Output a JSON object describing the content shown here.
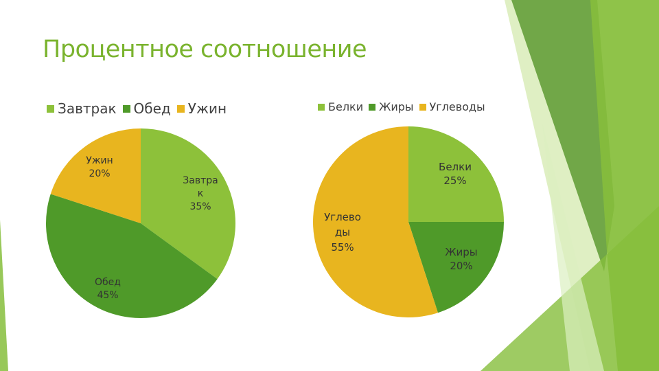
{
  "title": "Процентное соотношение",
  "colors": {
    "title": "#7ab32e",
    "light_green": "#8dc13a",
    "green": "#4f9a29",
    "gold": "#e8b51f",
    "deco_dark": "#5e9a33",
    "deco_mid": "#86be3c",
    "deco_light": "#b8dc7a"
  },
  "chart_data": [
    {
      "type": "pie",
      "title": "",
      "legend": "top",
      "categories": [
        "Завтрак",
        "Обед",
        "Ужин"
      ],
      "values": [
        35,
        45,
        20
      ],
      "unit": "%",
      "data_labels": [
        {
          "category_lines": [
            "Завтра",
            "к"
          ],
          "value_text": "35%"
        },
        {
          "category_lines": [
            "Обед"
          ],
          "value_text": "45%"
        },
        {
          "category_lines": [
            "Ужин"
          ],
          "value_text": "20%"
        }
      ],
      "slice_colors": [
        "#8dc13a",
        "#4f9a29",
        "#e8b51f"
      ]
    },
    {
      "type": "pie",
      "title": "",
      "legend": "top",
      "categories": [
        "Белки",
        "Жиры",
        "Углеводы"
      ],
      "values": [
        25,
        20,
        55
      ],
      "unit": "%",
      "data_labels": [
        {
          "category_lines": [
            "Белки"
          ],
          "value_text": "25%"
        },
        {
          "category_lines": [
            "Жиры"
          ],
          "value_text": "20%"
        },
        {
          "category_lines": [
            "Углево",
            "ды"
          ],
          "value_text": "55%"
        }
      ],
      "slice_colors": [
        "#8dc13a",
        "#4f9a29",
        "#e8b51f"
      ]
    }
  ]
}
